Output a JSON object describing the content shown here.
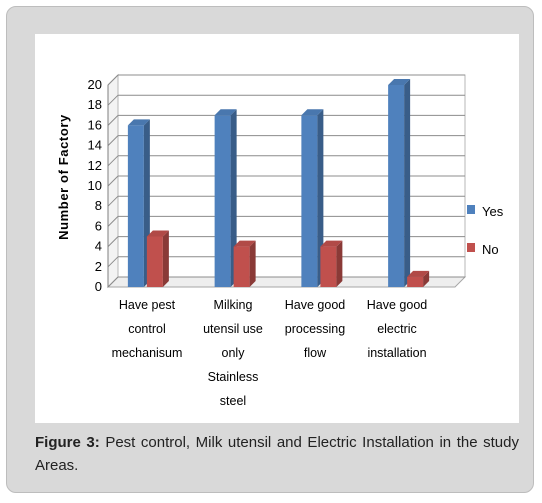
{
  "chart_data": {
    "type": "bar",
    "categories": [
      [
        "Have pest",
        "control",
        "mechanisum"
      ],
      [
        "Milking",
        "utensil use",
        "only",
        "Stainless",
        "steel"
      ],
      [
        "Have good",
        "processing",
        "flow"
      ],
      [
        "Have good",
        "electric",
        "installation"
      ]
    ],
    "series": [
      {
        "name": "Yes",
        "values": [
          16,
          17,
          17,
          20
        ],
        "color": "#4f81bd"
      },
      {
        "name": "No",
        "values": [
          5,
          4,
          4,
          1
        ],
        "color": "#c0504d"
      }
    ],
    "ylabel": "Number of Factory",
    "xlabel": "",
    "ylim": [
      0,
      20
    ],
    "yticks": [
      0,
      2,
      4,
      6,
      8,
      10,
      12,
      14,
      16,
      18,
      20
    ],
    "grid": true,
    "legend_position": "right",
    "style": "3d-clustered-column"
  },
  "caption": {
    "label": "Figure 3:",
    "text": " Pest control, Milk utensil and Electric Installation in the study Areas."
  }
}
